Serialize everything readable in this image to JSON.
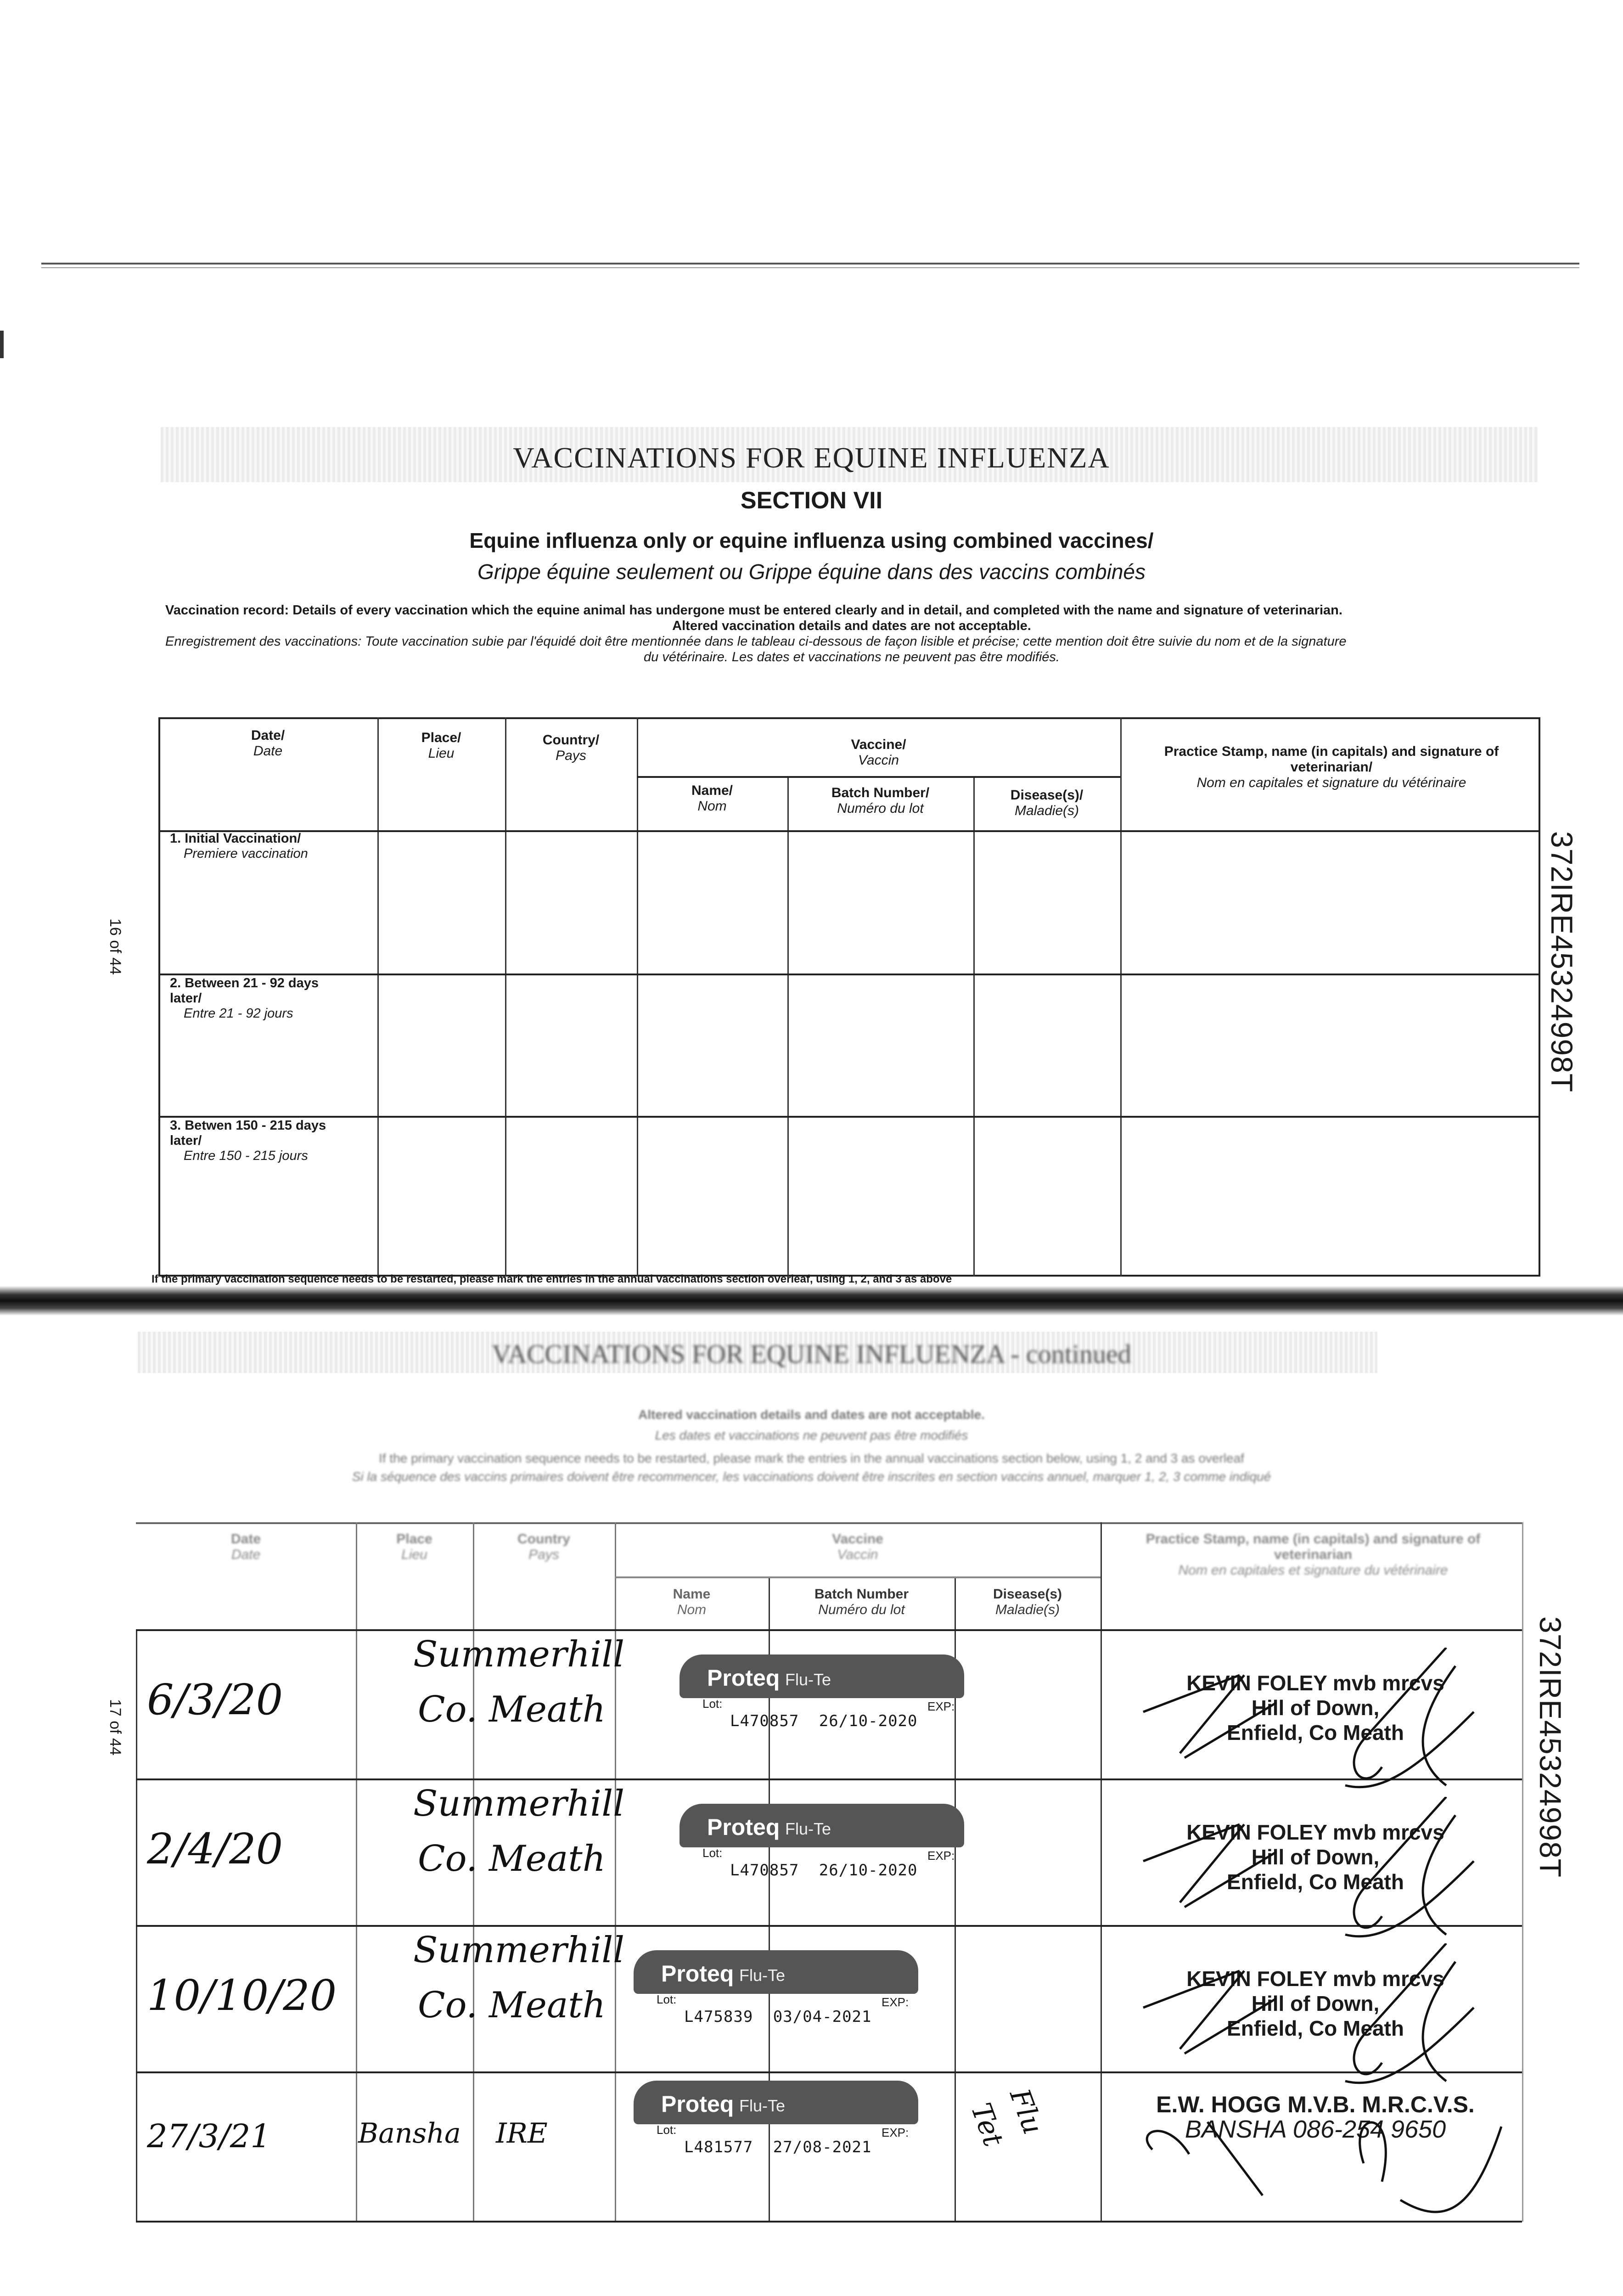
{
  "page": {
    "title": "VACCINATIONS FOR EQUINE INFLUENZA",
    "section": "SECTION VII",
    "subtitle_en": "Equine influenza only or equine influenza using combined vaccines/",
    "subtitle_fr": "Grippe équine seulement ou Grippe équine dans des vaccins combinés",
    "record_en_1": "Vaccination record: Details of every vaccination which the equine animal has undergone must be entered clearly and in detail, and completed with the name and signature of veterinarian.",
    "record_en_2": "Altered vaccination details and dates are not acceptable.",
    "record_fr_1": "Enregistrement des vaccinations: Toute vaccination subie par l'équidé doit être mentionnée dans le tableau ci-dessous de façon lisible et précise; cette mention doit être suivie du nom et de la signature",
    "record_fr_2": "du vétérinaire. Les dates et vaccinations ne peuvent pas être modifiés.",
    "page_16": "16 of 44",
    "page_17": "17 of 44",
    "serial": "372IRE45324998T",
    "footnote": "If the primary vaccination sequence needs to be restarted, please mark the entries in the annual vaccinations section overleaf, using 1, 2, and 3 as above",
    "continued_title": "VACCINATIONS FOR EQUINE INFLUENZA - continued",
    "cont_note_en": "Altered vaccination details and dates are not acceptable.",
    "cont_note_fr": "Les dates et vaccinations ne peuvent pas être modifiés",
    "cont_restart_en": "If the primary vaccination sequence needs to be restarted, please mark the entries in the annual vaccinations section below, using 1, 2 and 3 as overleaf",
    "cont_restart_fr": "Si la séquence des vaccins primaires doivent être recommencer, les vaccinations doivent être inscrites en section vaccins annuel, marquer 1, 2, 3 comme indiqué"
  },
  "headers": {
    "date": "Date/",
    "date_fr": "Date",
    "place": "Place/",
    "place_fr": "Lieu",
    "country": "Country/",
    "country_fr": "Pays",
    "vaccine": "Vaccine/",
    "vaccine_fr": "Vaccin",
    "name": "Name/",
    "name_fr": "Nom",
    "batch": "Batch Number/",
    "batch_fr": "Numéro du lot",
    "disease": "Disease(s)/",
    "disease_fr": "Maladie(s)",
    "stamp": "Practice Stamp, name (in capitals) and signature of veterinarian/",
    "stamp_fr": "Nom en capitales et signature du vétérinaire"
  },
  "headers2": {
    "date": "Date",
    "date_fr": "Date",
    "place": "Place",
    "place_fr": "Lieu",
    "country": "Country",
    "country_fr": "Pays",
    "vaccine": "Vaccine",
    "vaccine_fr": "Vaccin",
    "name": "Name",
    "name_fr": "Nom",
    "batch": "Batch Number",
    "batch_fr": "Numéro du lot",
    "disease": "Disease(s)",
    "disease_fr": "Maladie(s)",
    "stamp": "Practice Stamp, name (in capitals) and signature of veterinarian",
    "stamp_fr": "Nom en capitales et signature du vétérinaire"
  },
  "primary_rows": [
    {
      "label": "1. Initial Vaccination/",
      "label_fr": "Premiere vaccination"
    },
    {
      "label": "2. Between 21 - 92 days later/",
      "label_fr": "Entre 21 - 92 jours"
    },
    {
      "label": "3. Betwen 150 - 215 days later/",
      "label_fr": "Entre 150 - 215 jours"
    }
  ],
  "annual_rows": [
    {
      "date": "6/3/20",
      "place": "Summerhill",
      "country": "Co. Meath",
      "sticker_brand": "Proteq",
      "sticker_product": "Flu-Te",
      "lot_label": "Lot:",
      "exp_label": "EXP:",
      "lot": "L470857",
      "exp": "26/10-2020",
      "disease": "",
      "stamp_name": "KEVIN FOLEY mvb mrcvs",
      "stamp_l2": "Hill of Down,",
      "stamp_l3": "Enfield, Co Meath"
    },
    {
      "date": "2/4/20",
      "place": "Summerhill",
      "country": "Co. Meath",
      "sticker_brand": "Proteq",
      "sticker_product": "Flu-Te",
      "lot_label": "Lot:",
      "exp_label": "EXP:",
      "lot": "L470857",
      "exp": "26/10-2020",
      "disease": "",
      "stamp_name": "KEVIN FOLEY mvb mrcvs",
      "stamp_l2": "Hill of Down,",
      "stamp_l3": "Enfield, Co Meath"
    },
    {
      "date": "10/10/20",
      "place": "Summerhill",
      "country": "Co. Meath",
      "sticker_brand": "Proteq",
      "sticker_product": "Flu-Te",
      "lot_label": "Lot:",
      "exp_label": "EXP:",
      "lot": "L475839",
      "exp": "03/04-2021",
      "disease": "",
      "stamp_name": "KEVIN FOLEY mvb mrcvs",
      "stamp_l2": "Hill of Down,",
      "stamp_l3": "Enfield, Co Meath"
    },
    {
      "date": "27/3/21",
      "place": "Bansha",
      "country": "IRE",
      "sticker_brand": "Proteq",
      "sticker_product": "Flu-Te",
      "lot_label": "Lot:",
      "exp_label": "EXP:",
      "lot": "L481577",
      "exp": "27/08-2021",
      "disease": "Flu Tet",
      "stamp_name": "E.W. HOGG M.V.B. M.R.C.V.S.",
      "stamp_l2": "BANSHA 086-254 9650",
      "stamp_l3": ""
    }
  ],
  "colors": {
    "ink": "#1a1a1a",
    "sticker": "#555555",
    "paper": "#ffffff"
  }
}
